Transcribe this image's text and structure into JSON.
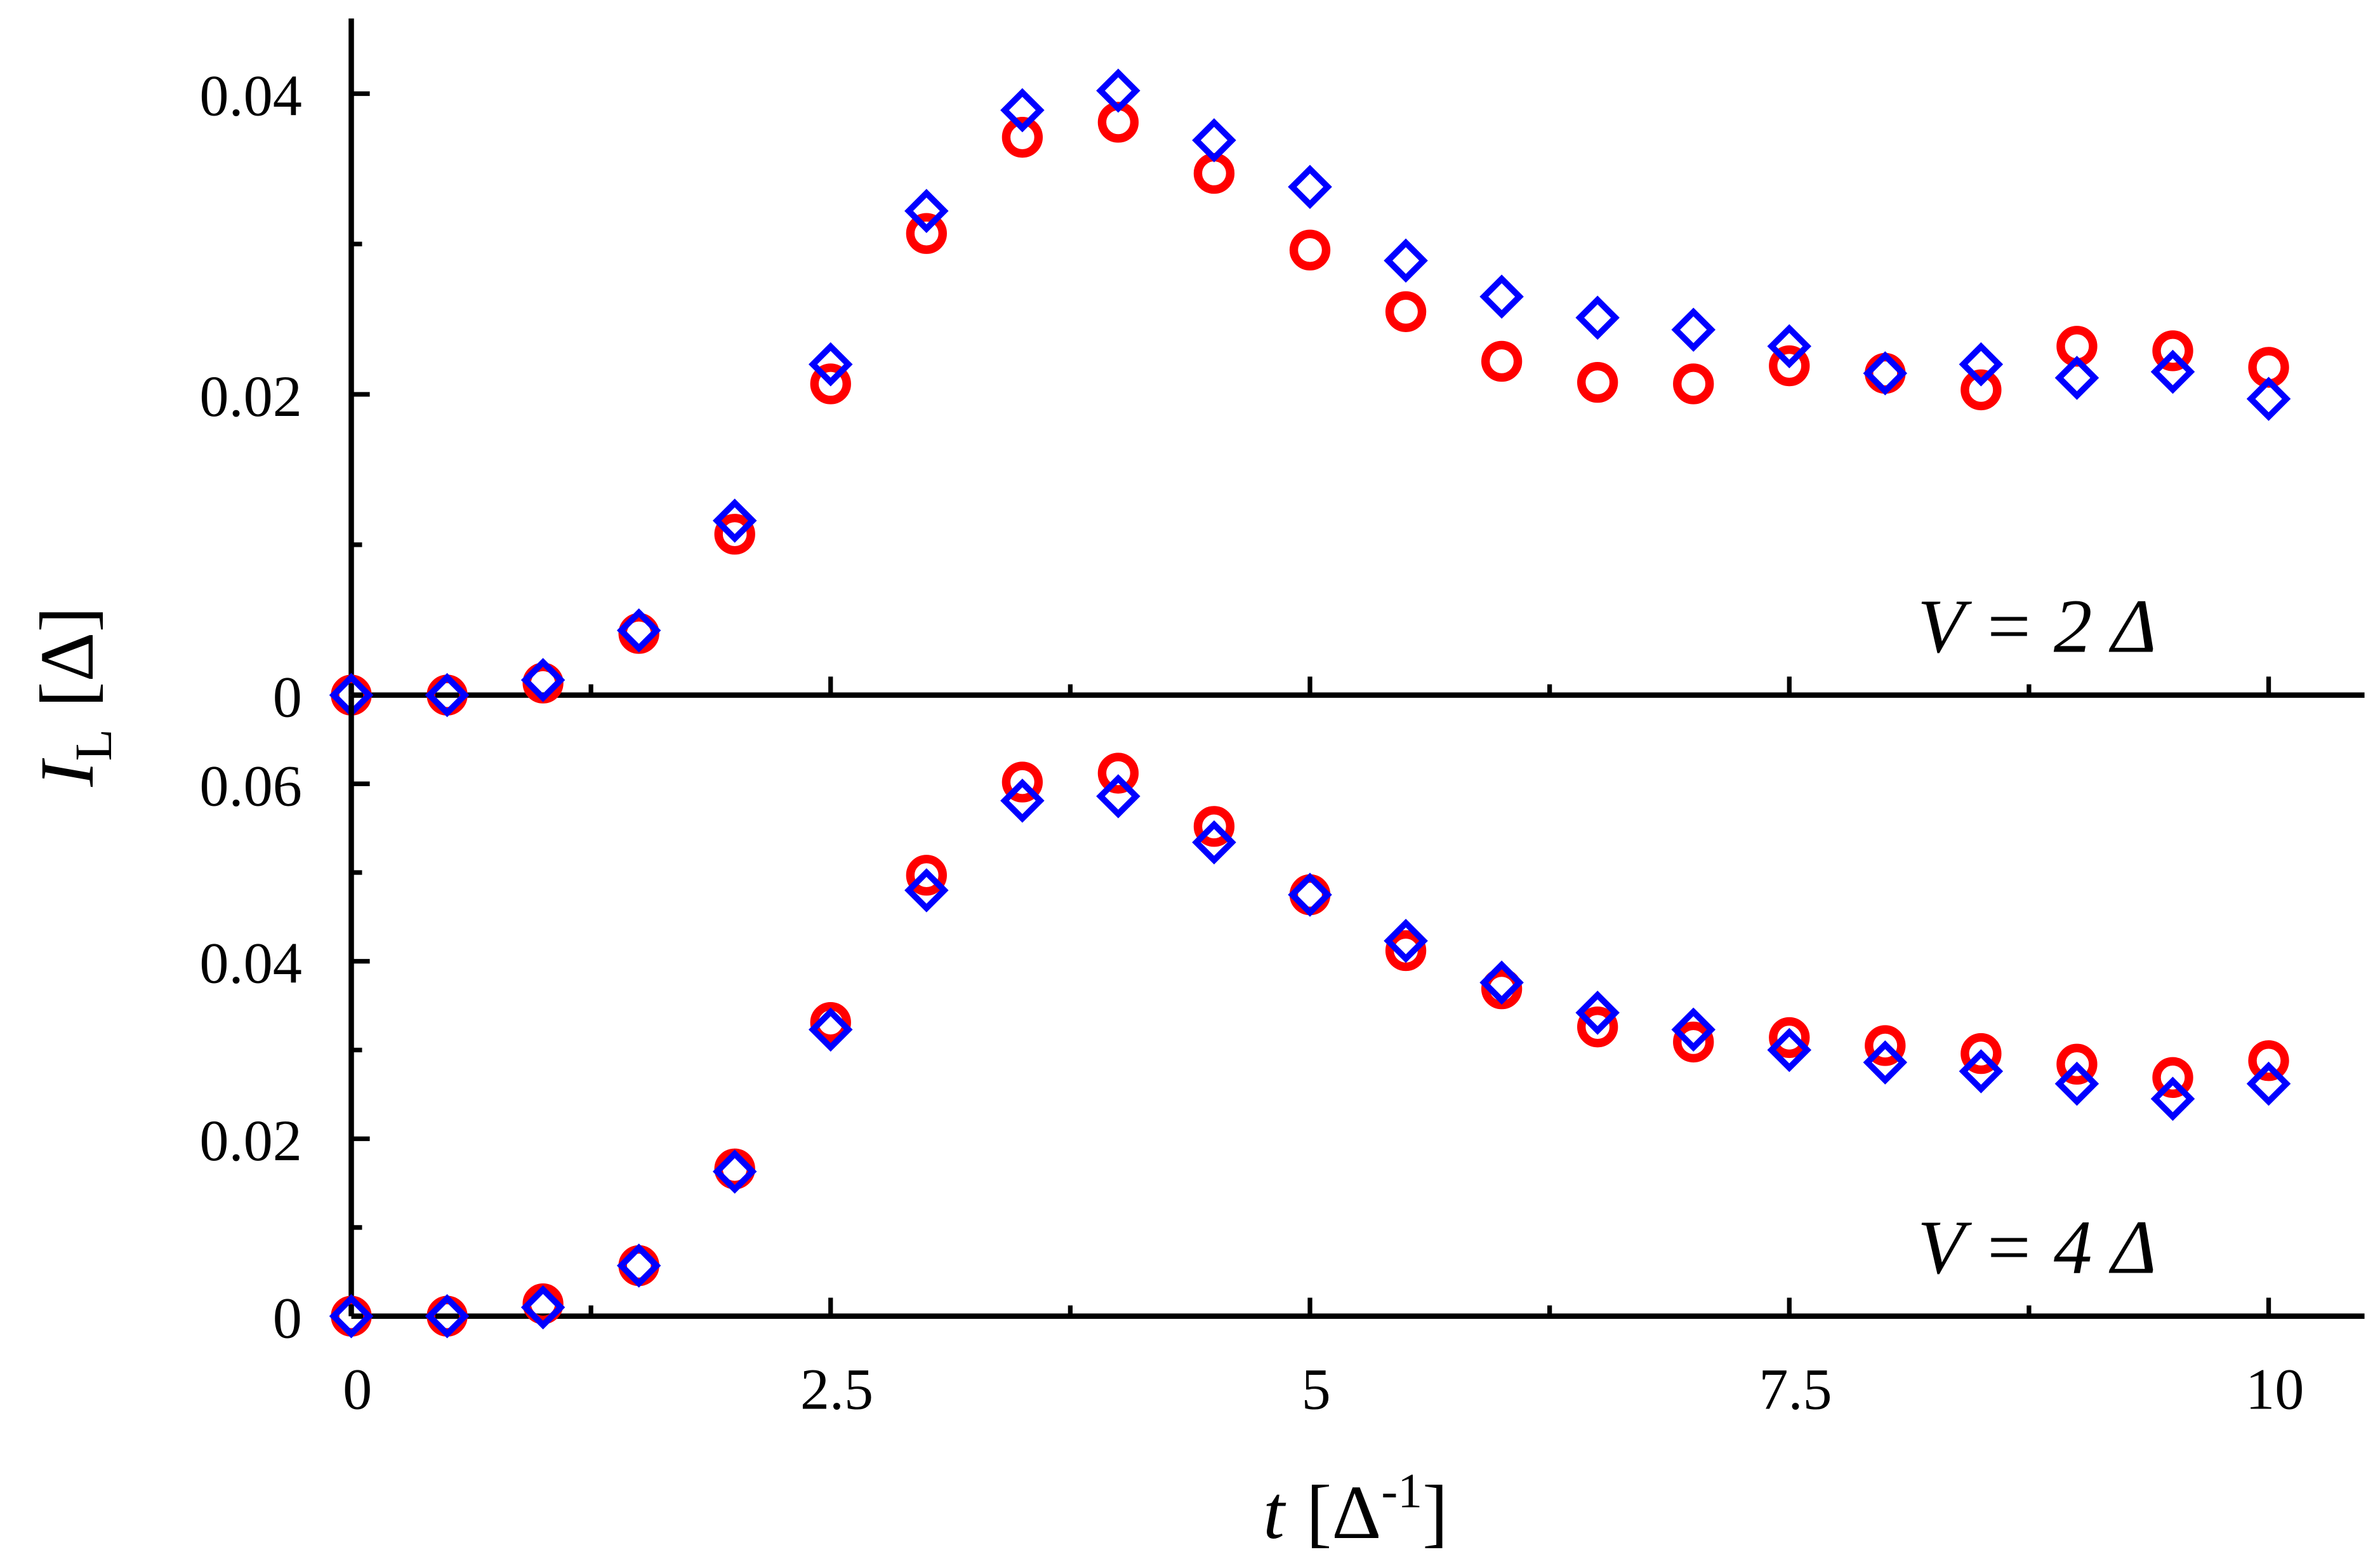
{
  "chart_data": [
    {
      "type": "scatter",
      "annotation": "V = 2 Δ",
      "ylabel": [
        "I",
        "L",
        "[Δ]"
      ],
      "x": [
        0,
        0.5,
        1,
        1.5,
        2,
        2.5,
        3,
        3.5,
        4,
        4.5,
        5,
        5.5,
        6,
        6.5,
        7,
        7.5,
        8,
        8.5,
        9,
        9.5,
        10
      ],
      "series": [
        {
          "color": "#ff0000",
          "marker": "circle",
          "values": [
            0,
            0,
            0.0008,
            0.0041,
            0.0107,
            0.0207,
            0.0307,
            0.0371,
            0.0381,
            0.0347,
            0.0296,
            0.0255,
            0.0222,
            0.0208,
            0.0207,
            0.0219,
            0.0214,
            0.0203,
            0.0232,
            0.0229,
            0.0218
          ]
        },
        {
          "color": "#0000ff",
          "marker": "diamond",
          "values": [
            0,
            0,
            0.001,
            0.0043,
            0.0116,
            0.022,
            0.0322,
            0.0389,
            0.0402,
            0.0369,
            0.0338,
            0.0289,
            0.0265,
            0.0251,
            0.0243,
            0.0232,
            0.0214,
            0.022,
            0.0211,
            0.0215,
            0.0197
          ]
        }
      ],
      "xlim": [
        0,
        10.5
      ],
      "xticks": [
        0,
        2.5,
        5,
        7.5,
        10
      ],
      "xminor": [
        1.25,
        3.75,
        6.25,
        8.75
      ],
      "ylim": [
        0,
        0.045
      ],
      "yticks": [
        0,
        0.02,
        0.04
      ],
      "yminor": [
        0.01,
        0.03
      ]
    },
    {
      "type": "scatter",
      "annotation": "V = 4 Δ",
      "xlabel": [
        "t",
        "[Δ",
        "-1",
        "]"
      ],
      "x": [
        0,
        0.5,
        1,
        1.5,
        2,
        2.5,
        3,
        3.5,
        4,
        4.5,
        5,
        5.5,
        6,
        6.5,
        7,
        7.5,
        8,
        8.5,
        9,
        9.5,
        10
      ],
      "series": [
        {
          "color": "#ff0000",
          "marker": "circle",
          "values": [
            0,
            0,
            0.0014,
            0.0057,
            0.0166,
            0.0331,
            0.0497,
            0.0602,
            0.0612,
            0.0552,
            0.0475,
            0.0412,
            0.0369,
            0.0326,
            0.0309,
            0.0314,
            0.0305,
            0.0296,
            0.0284,
            0.0269,
            0.0288
          ]
        },
        {
          "color": "#0000ff",
          "marker": "diamond",
          "values": [
            0,
            0,
            0.001,
            0.0057,
            0.0163,
            0.0323,
            0.048,
            0.0581,
            0.0586,
            0.0534,
            0.0475,
            0.0423,
            0.0376,
            0.0342,
            0.0323,
            0.03,
            0.0286,
            0.0276,
            0.0262,
            0.0245,
            0.0262
          ]
        }
      ],
      "xlim": [
        0,
        10.5
      ],
      "xticks": [
        0,
        2.5,
        5,
        7.5,
        10
      ],
      "xminor": [
        1.25,
        3.75,
        6.25,
        8.75
      ],
      "ylim": [
        0,
        0.07
      ],
      "yticks": [
        0,
        0.02,
        0.04,
        0.06
      ],
      "yminor": [
        0.01,
        0.03,
        0.05
      ]
    }
  ]
}
